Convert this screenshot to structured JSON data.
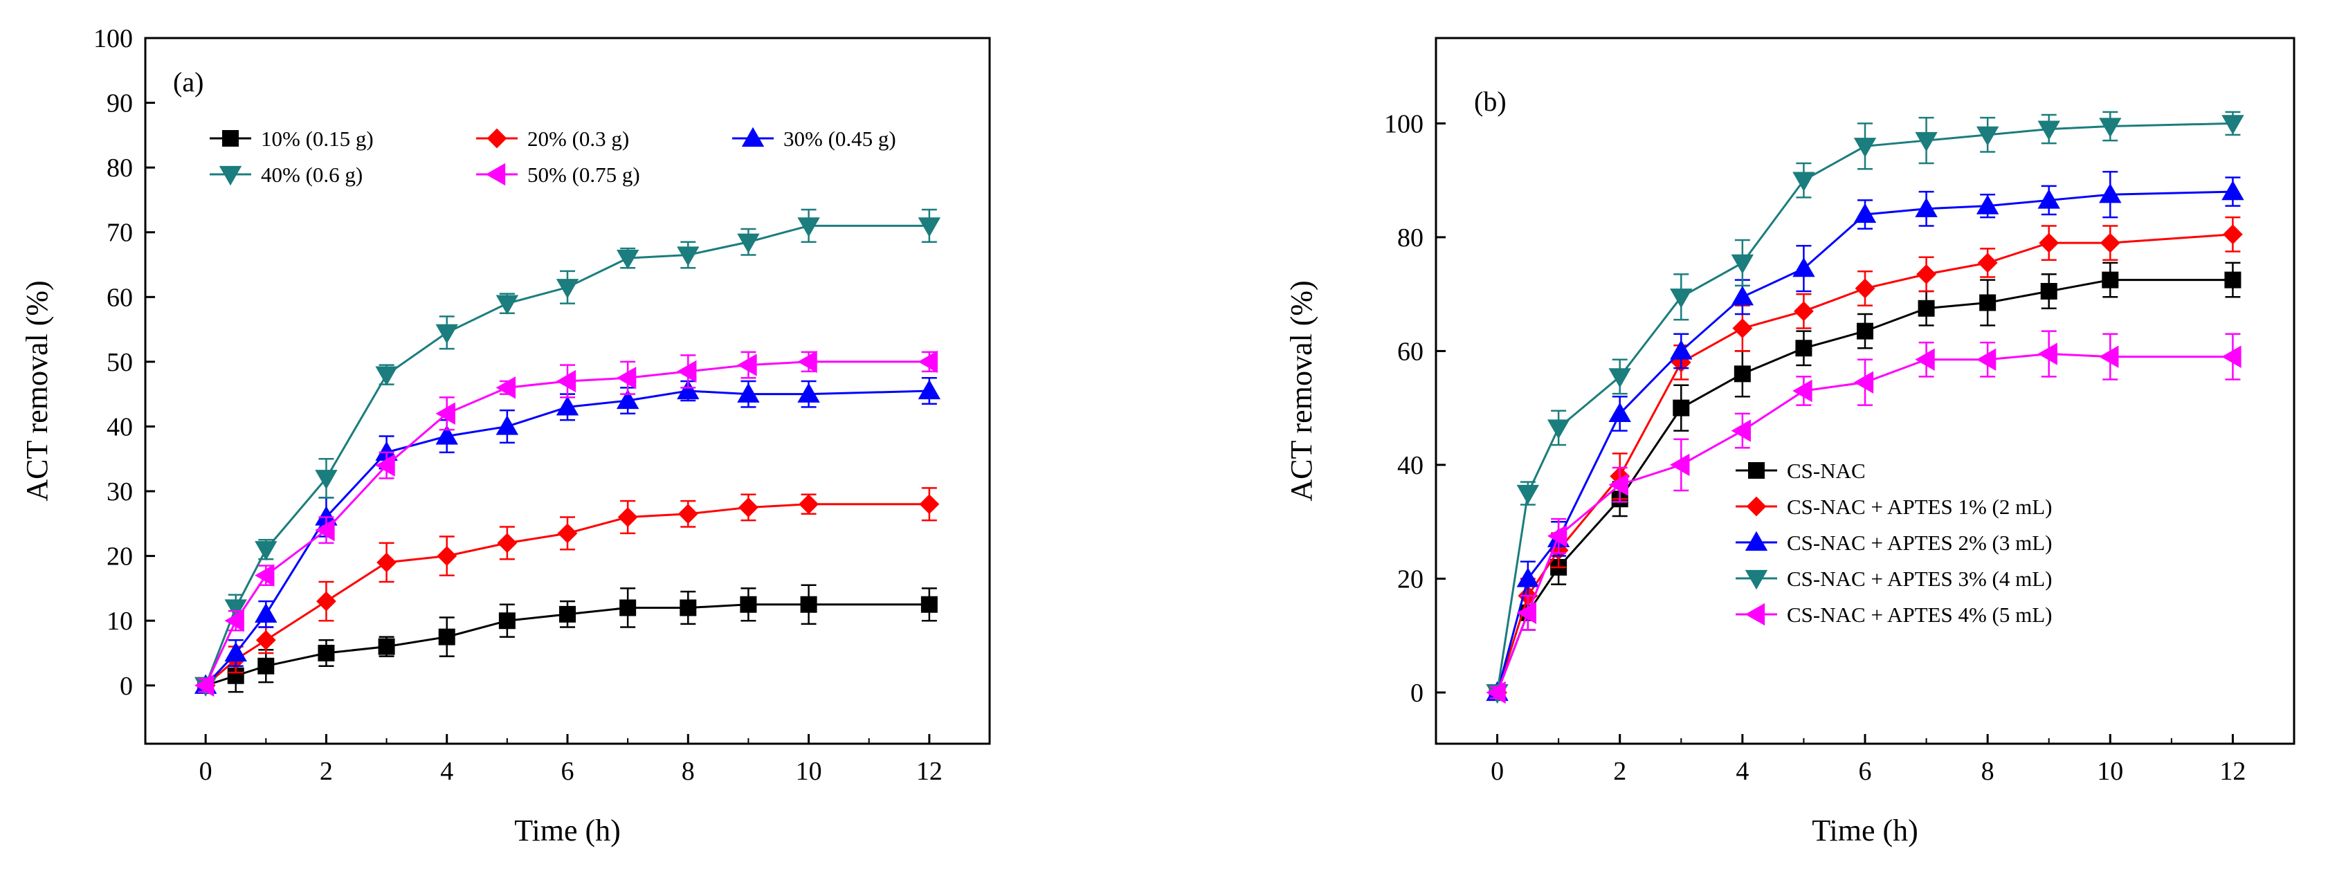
{
  "chart_data": [
    {
      "type": "line",
      "panel_label": "(a)",
      "xlabel": "Time (h)",
      "ylabel": "ACT removal (%)",
      "xlim": [
        -1,
        13
      ],
      "ylim": [
        -9,
        100
      ],
      "xticks": [
        0,
        2,
        4,
        6,
        8,
        10,
        12
      ],
      "yticks": [
        0,
        10,
        20,
        30,
        40,
        50,
        60,
        70,
        80,
        90,
        100
      ],
      "x": [
        0,
        0.5,
        1,
        2,
        3,
        4,
        5,
        6,
        7,
        8,
        9,
        10,
        12
      ],
      "series": [
        {
          "name": "10% (0.15 g)",
          "color": "#000000",
          "marker": "square",
          "values": [
            0,
            1.5,
            3,
            5,
            6,
            7.5,
            10,
            11,
            12,
            12,
            12.5,
            12.5,
            12.5
          ],
          "err": [
            1,
            2.5,
            2.5,
            2,
            1.5,
            3,
            2.5,
            2,
            3,
            2.5,
            2.5,
            3,
            2.5
          ]
        },
        {
          "name": "20% (0.3 g)",
          "color": "#ff0000",
          "marker": "diamond",
          "values": [
            0,
            4,
            7,
            13,
            19,
            20,
            22,
            23.5,
            26,
            26.5,
            27.5,
            28,
            28
          ],
          "err": [
            1,
            2,
            2,
            3,
            3,
            3,
            2.5,
            2.5,
            2.5,
            2,
            2,
            1.5,
            2.5
          ]
        },
        {
          "name": "30% (0.45 g)",
          "color": "#0000ff",
          "marker": "triangle-up",
          "values": [
            0,
            5,
            11,
            26,
            36,
            38.5,
            40,
            43,
            44,
            45.5,
            45,
            45,
            45.5
          ],
          "err": [
            1,
            2,
            2,
            3,
            2.5,
            2.5,
            2.5,
            2,
            2,
            1.5,
            2,
            2,
            2
          ]
        },
        {
          "name": "40% (0.6 g)",
          "color": "#1b7d7d",
          "marker": "triangle-down",
          "values": [
            0,
            12,
            21,
            32,
            48,
            54.5,
            59,
            61.5,
            66,
            66.5,
            68.5,
            71,
            71
          ],
          "err": [
            1,
            2,
            1.5,
            3,
            1.5,
            2.5,
            1.5,
            2.5,
            1.5,
            2,
            2,
            2.5,
            2.5
          ]
        },
        {
          "name": "50% (0.75 g)",
          "color": "#ff00ff",
          "marker": "triangle-left",
          "values": [
            0,
            10,
            17,
            24,
            34,
            42,
            46,
            47,
            47.5,
            48.5,
            49.5,
            50,
            50
          ],
          "err": [
            1,
            1.5,
            1.5,
            2,
            2,
            2.5,
            1,
            2.5,
            2.5,
            2.5,
            2,
            1.5,
            1.5
          ]
        }
      ]
    },
    {
      "type": "line",
      "panel_label": "(b)",
      "xlabel": "Time (h)",
      "ylabel": "ACT removal (%)",
      "xlim": [
        -1,
        13
      ],
      "ylim": [
        -9,
        115
      ],
      "xticks": [
        0,
        2,
        4,
        6,
        8,
        10,
        12
      ],
      "yticks": [
        0,
        20,
        40,
        60,
        80,
        100
      ],
      "x": [
        0,
        0.5,
        1,
        2,
        3,
        4,
        5,
        6,
        7,
        8,
        9,
        10,
        12
      ],
      "series": [
        {
          "name": "CS-NAC",
          "color": "#000000",
          "marker": "square",
          "values": [
            0,
            14,
            22,
            34,
            50,
            56,
            60.5,
            63.5,
            67.5,
            68.5,
            70.5,
            72.5,
            72.5
          ],
          "err": [
            1,
            3,
            3,
            3,
            4,
            4,
            3,
            3,
            3,
            4,
            3,
            3,
            3
          ]
        },
        {
          "name": "CS-NAC + APTES 1% (2 mL)",
          "color": "#ff0000",
          "marker": "diamond",
          "values": [
            0,
            17,
            25,
            38,
            58,
            64,
            67,
            71,
            73.5,
            75.5,
            79,
            79,
            80.5
          ],
          "err": [
            1,
            3,
            3,
            4,
            3,
            4,
            3,
            3,
            3,
            2.5,
            3,
            3,
            3
          ]
        },
        {
          "name": "CS-NAC + APTES 2% (3 mL)",
          "color": "#0000ff",
          "marker": "triangle-up",
          "values": [
            0,
            20,
            27,
            49,
            60,
            69.5,
            74.5,
            84,
            85,
            85.5,
            86.5,
            87.5,
            88
          ],
          "err": [
            1,
            3,
            3,
            3,
            3,
            3,
            4,
            2.5,
            3,
            2,
            2.5,
            4,
            2.5
          ]
        },
        {
          "name": "CS-NAC + APTES 3% (4 mL)",
          "color": "#1b7d7d",
          "marker": "triangle-down",
          "values": [
            0,
            35,
            46.5,
            55.5,
            69.5,
            75.5,
            90,
            96,
            97,
            98,
            99,
            99.5,
            100
          ],
          "err": [
            1,
            2,
            3,
            3,
            4,
            4,
            3,
            4,
            4,
            3,
            2.5,
            2.5,
            2
          ]
        },
        {
          "name": "CS-NAC + APTES 4% (5 mL)",
          "color": "#ff00ff",
          "marker": "triangle-left",
          "values": [
            0,
            14,
            27.5,
            36.5,
            40,
            46,
            53,
            54.5,
            58.5,
            58.5,
            59.5,
            59,
            59
          ],
          "err": [
            1,
            3,
            3,
            3,
            4.5,
            3,
            2.5,
            4,
            3,
            3,
            4,
            4,
            4
          ]
        }
      ]
    }
  ]
}
